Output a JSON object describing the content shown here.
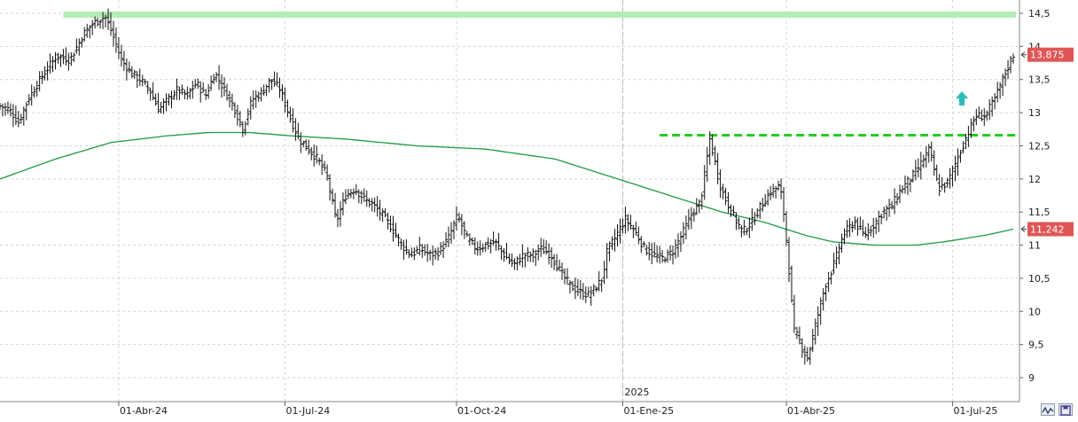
{
  "chart_data": {
    "type": "bar",
    "subtype": "ohlc",
    "title": "",
    "xlabel": "",
    "ylabel": "",
    "ylim": [
      8.8,
      14.65
    ],
    "y_ticks": [
      "14,5",
      "14",
      "13,5",
      "13",
      "12,5",
      "12",
      "11,5",
      "11",
      "10,5",
      "10",
      "9,5",
      "9"
    ],
    "y_tick_values": [
      14.5,
      14,
      13.5,
      13,
      12.5,
      12,
      11.5,
      11,
      10.5,
      10,
      9.5,
      9
    ],
    "x_ticks": [
      {
        "label": "01-Abr-24",
        "bar": 45
      },
      {
        "label": "01-Jul-24",
        "bar": 108
      },
      {
        "label": "01-Oct-24",
        "bar": 173
      },
      {
        "label": "01-Ene-25",
        "bar": 236
      },
      {
        "label": "01-Abr-25",
        "bar": 298
      },
      {
        "label": "01-Jul-25",
        "bar": 361
      }
    ],
    "year_marker": {
      "label": "2025",
      "bar": 236
    },
    "bar_count": 385,
    "price_path": [
      [
        0,
        13.1
      ],
      [
        4,
        13.05
      ],
      [
        8,
        12.85
      ],
      [
        12,
        13.2
      ],
      [
        18,
        13.55
      ],
      [
        24,
        13.85
      ],
      [
        30,
        13.8
      ],
      [
        36,
        14.2
      ],
      [
        40,
        14.35
      ],
      [
        45,
        14.45
      ],
      [
        48,
        14.2
      ],
      [
        52,
        13.8
      ],
      [
        56,
        13.6
      ],
      [
        60,
        13.5
      ],
      [
        64,
        13.35
      ],
      [
        68,
        13.05
      ],
      [
        72,
        13.2
      ],
      [
        76,
        13.35
      ],
      [
        80,
        13.25
      ],
      [
        84,
        13.45
      ],
      [
        88,
        13.25
      ],
      [
        92,
        13.6
      ],
      [
        96,
        13.35
      ],
      [
        100,
        13.1
      ],
      [
        104,
        12.75
      ],
      [
        108,
        13.2
      ],
      [
        112,
        13.3
      ],
      [
        116,
        13.5
      ],
      [
        120,
        13.35
      ],
      [
        124,
        12.95
      ],
      [
        128,
        12.6
      ],
      [
        132,
        12.45
      ],
      [
        136,
        12.3
      ],
      [
        140,
        12.05
      ],
      [
        144,
        11.35
      ],
      [
        148,
        11.75
      ],
      [
        152,
        11.85
      ],
      [
        156,
        11.7
      ],
      [
        160,
        11.6
      ],
      [
        164,
        11.45
      ],
      [
        168,
        11.25
      ],
      [
        172,
        11.0
      ],
      [
        176,
        10.85
      ],
      [
        180,
        10.95
      ],
      [
        184,
        10.85
      ],
      [
        188,
        10.9
      ],
      [
        192,
        11.1
      ],
      [
        196,
        11.45
      ],
      [
        200,
        11.1
      ],
      [
        204,
        10.95
      ],
      [
        208,
        11.0
      ],
      [
        212,
        11.05
      ],
      [
        216,
        10.85
      ],
      [
        220,
        10.7
      ],
      [
        224,
        10.85
      ],
      [
        228,
        10.85
      ],
      [
        232,
        10.95
      ],
      [
        236,
        10.85
      ],
      [
        240,
        10.6
      ],
      [
        244,
        10.4
      ],
      [
        248,
        10.3
      ],
      [
        252,
        10.25
      ],
      [
        255,
        10.35
      ],
      [
        258,
        10.5
      ],
      [
        260,
        10.9
      ],
      [
        264,
        11.15
      ],
      [
        268,
        11.4
      ],
      [
        272,
        11.2
      ],
      [
        276,
        10.95
      ],
      [
        280,
        10.85
      ],
      [
        284,
        10.8
      ],
      [
        288,
        10.9
      ],
      [
        292,
        11.15
      ],
      [
        296,
        11.45
      ],
      [
        300,
        11.65
      ],
      [
        302,
        12.1
      ],
      [
        304,
        12.6
      ],
      [
        306,
        12.3
      ],
      [
        308,
        11.95
      ],
      [
        310,
        11.75
      ],
      [
        314,
        11.45
      ],
      [
        318,
        11.2
      ],
      [
        322,
        11.35
      ],
      [
        326,
        11.6
      ],
      [
        330,
        11.8
      ],
      [
        334,
        11.9
      ],
      [
        336,
        11.4
      ],
      [
        338,
        10.6
      ],
      [
        340,
        9.7
      ],
      [
        342,
        9.6
      ],
      [
        344,
        9.4
      ],
      [
        346,
        9.3
      ],
      [
        348,
        9.6
      ],
      [
        350,
        9.9
      ],
      [
        352,
        10.2
      ],
      [
        354,
        10.45
      ],
      [
        356,
        10.6
      ],
      [
        358,
        10.8
      ],
      [
        360,
        11.05
      ],
      [
        362,
        11.2
      ],
      [
        366,
        11.35
      ],
      [
        370,
        11.15
      ],
      [
        374,
        11.3
      ],
      [
        378,
        11.5
      ],
      [
        382,
        11.6
      ],
      [
        386,
        11.85
      ],
      [
        390,
        12.0
      ],
      [
        394,
        12.2
      ],
      [
        398,
        12.45
      ],
      [
        402,
        11.85
      ],
      [
        406,
        11.95
      ],
      [
        410,
        12.3
      ],
      [
        414,
        12.65
      ],
      [
        418,
        12.95
      ],
      [
        422,
        12.95
      ],
      [
        426,
        13.2
      ],
      [
        430,
        13.55
      ],
      [
        434,
        13.875
      ]
    ],
    "price_path_scale_bars": 434,
    "moving_average": [
      [
        0,
        12.0
      ],
      [
        20,
        12.3
      ],
      [
        40,
        12.55
      ],
      [
        60,
        12.65
      ],
      [
        75,
        12.7
      ],
      [
        90,
        12.7
      ],
      [
        105,
        12.65
      ],
      [
        125,
        12.6
      ],
      [
        150,
        12.5
      ],
      [
        175,
        12.45
      ],
      [
        200,
        12.3
      ],
      [
        215,
        12.1
      ],
      [
        230,
        11.9
      ],
      [
        245,
        11.7
      ],
      [
        260,
        11.5
      ],
      [
        275,
        11.35
      ],
      [
        290,
        11.15
      ],
      [
        300,
        11.05
      ],
      [
        315,
        11.0
      ],
      [
        330,
        11.0
      ],
      [
        340,
        11.05
      ],
      [
        355,
        11.15
      ],
      [
        365,
        11.242
      ]
    ],
    "ma_scale_bars": 365,
    "resistance_lines": [
      {
        "value": 14.48,
        "from_bar": 24,
        "to_bar": 385,
        "color": "#b5ecb5",
        "style": "solid"
      },
      {
        "value": 12.66,
        "from_bar": 250,
        "to_bar": 385,
        "color": "#22cc22",
        "style": "dashed"
      }
    ],
    "price_tags": [
      {
        "label": "13,875",
        "value": 13.875,
        "color": "#e05656"
      },
      {
        "label": "11,242",
        "value": 11.242,
        "color": "#e05656"
      }
    ],
    "arrow": {
      "direction": "up",
      "color": "#2bbcbc",
      "bar": 352,
      "value": 13.2
    },
    "colors": {
      "bars": "#111111",
      "ma": "#1e9a46",
      "grid": "#d6d6d6",
      "axis_bg": "#ffffff"
    },
    "grid": true
  },
  "toolbar": {
    "btn1_icon": "waveform-icon",
    "btn2_icon": "save-icon"
  }
}
